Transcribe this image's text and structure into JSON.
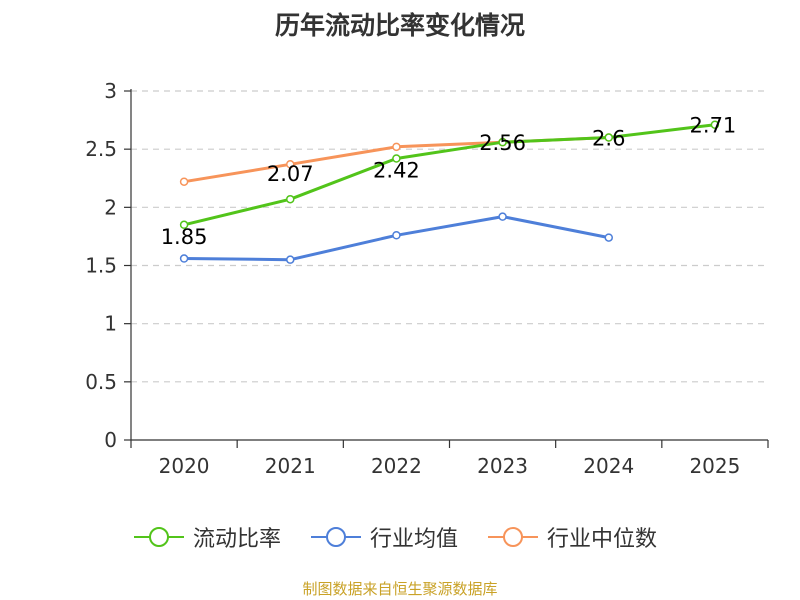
{
  "chart_data": {
    "type": "line",
    "title": "历年流动比率变化情况",
    "categories": [
      "2020",
      "2021",
      "2022",
      "2023",
      "2024",
      "2025"
    ],
    "ylim": [
      0,
      3
    ],
    "yticks": [
      "0",
      "0.5",
      "1",
      "1.5",
      "2",
      "2.5",
      "3"
    ],
    "grid": true,
    "legend_position": "bottom",
    "series": [
      {
        "name": "流动比率",
        "color": "#52c41a",
        "values": [
          1.85,
          2.07,
          2.42,
          2.56,
          2.6,
          2.71
        ],
        "labels": [
          "1.85",
          "2.07",
          "2.42",
          "2.56",
          "2.6",
          "2.71"
        ]
      },
      {
        "name": "行业均值",
        "color": "#4e7fd9",
        "values": [
          1.56,
          1.55,
          1.76,
          1.92,
          1.74,
          null
        ]
      },
      {
        "name": "行业中位数",
        "color": "#f7945a",
        "values": [
          2.22,
          2.37,
          2.52,
          2.56,
          2.6,
          null
        ]
      }
    ]
  },
  "source": "制图数据来自恒生聚源数据库"
}
